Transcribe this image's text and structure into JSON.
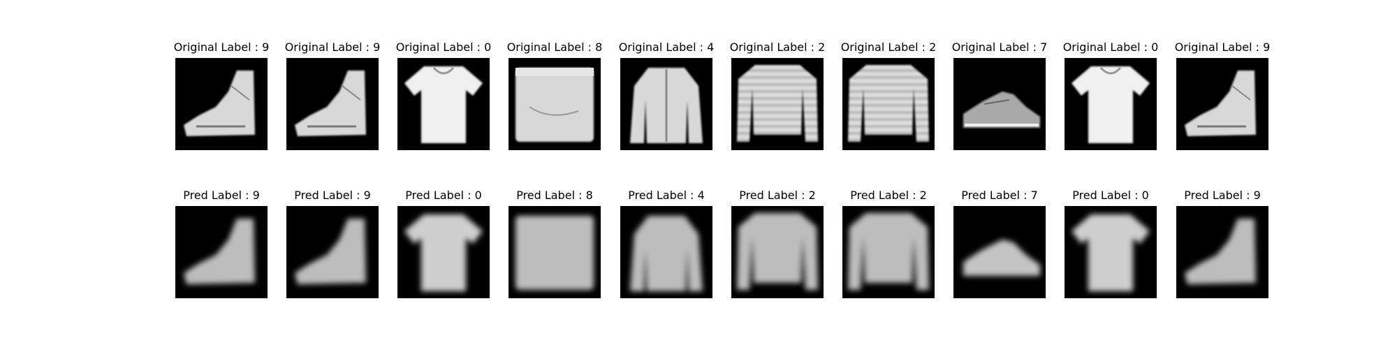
{
  "figure": {
    "background": "#ffffff",
    "image_background": "#000000",
    "columns": 10,
    "rows": [
      {
        "name": "original",
        "titles": [
          "Original Label : 9",
          "Original Label : 9",
          "Original Label : 0",
          "Original Label : 8",
          "Original Label : 4",
          "Original Label : 2",
          "Original Label : 2",
          "Original Label : 7",
          "Original Label : 0",
          "Original Label : 9"
        ],
        "images": [
          "ankle-boot",
          "ankle-boot",
          "t-shirt",
          "bag",
          "coat",
          "pullover",
          "pullover",
          "sneaker",
          "t-shirt",
          "ankle-boot"
        ]
      },
      {
        "name": "pred",
        "titles": [
          "Pred Label : 9",
          "Pred Label : 9",
          "Pred Label : 0",
          "Pred Label : 8",
          "Pred Label : 4",
          "Pred Label : 2",
          "Pred Label : 2",
          "Pred Label : 7",
          "Pred Label : 0",
          "Pred Label : 9"
        ],
        "images": [
          "ankle-boot",
          "ankle-boot",
          "t-shirt",
          "bag",
          "coat",
          "pullover",
          "pullover",
          "sneaker",
          "t-shirt",
          "ankle-boot"
        ]
      }
    ]
  }
}
